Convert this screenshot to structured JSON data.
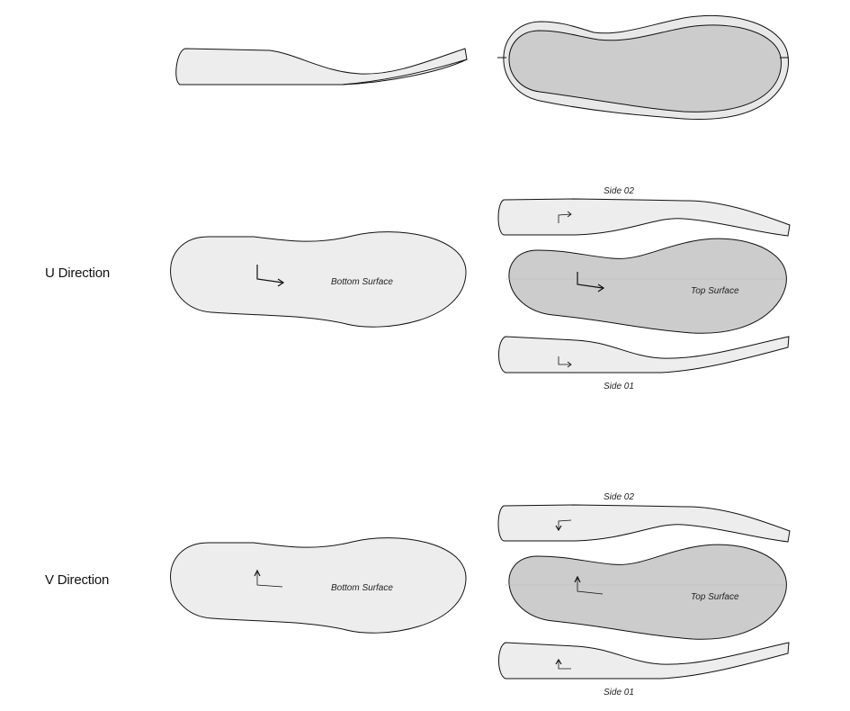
{
  "rows": {
    "u": {
      "label": "U Direction"
    },
    "v": {
      "label": "V Direction"
    }
  },
  "labels": {
    "bottom_surface": "Bottom Surface",
    "top_surface": "Top Surface",
    "side_01": "Side 01",
    "side_02": "Side 02"
  },
  "colors": {
    "light_fill": "#ededed",
    "dark_fill": "#cccccc",
    "outline": "#111111"
  }
}
